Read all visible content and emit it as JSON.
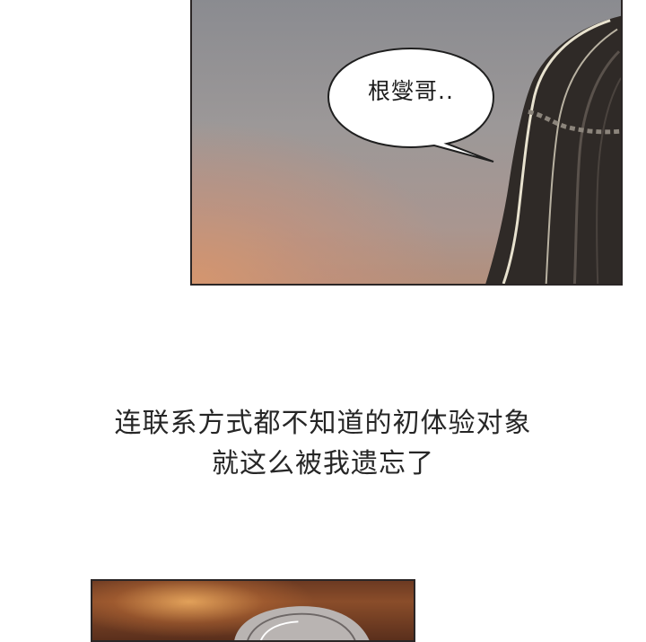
{
  "panels": {
    "top": {
      "speech_bubble": {
        "text": "根燮哥.."
      }
    },
    "caption": {
      "line1": "连联系方式都不知道的初体验对象",
      "line2": "就这么被我遗忘了"
    }
  },
  "colors": {
    "border": "#2b2626",
    "caption_text": "#262626",
    "sky_gray": "#9c9898",
    "sky_warm": "#d6966e",
    "hair_dark": "#2f2a27",
    "sunset_orange": "#b3652f"
  }
}
